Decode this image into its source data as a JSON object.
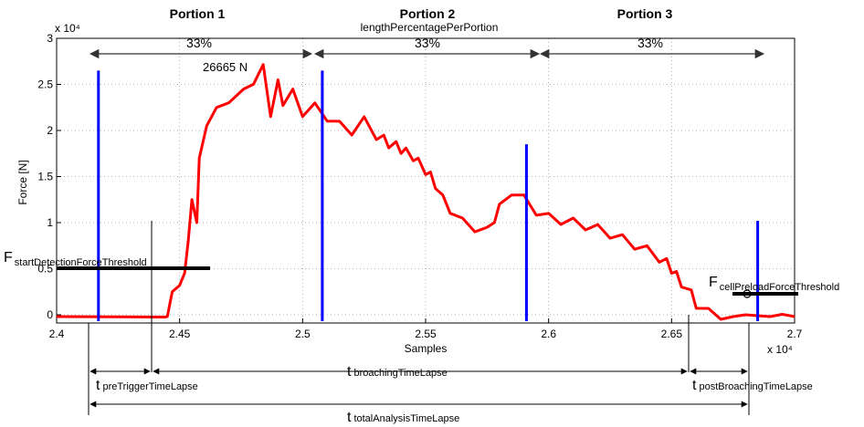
{
  "chart_data": {
    "type": "line",
    "portions": [
      {
        "title": "Portion 1",
        "pct": "33%"
      },
      {
        "title": "Portion 2",
        "pct": "33%"
      },
      {
        "title": "Portion 3",
        "pct": "33%"
      }
    ],
    "portion_caption": "lengthPercentagePerPortion",
    "peak_label": "26665 N",
    "ylabel": "Force [N]",
    "xlabel": "Samples",
    "y_exponent": "x 10⁴",
    "x_exponent": "x 10⁴",
    "xlim": [
      24000,
      27000
    ],
    "ylim": [
      -500,
      30000
    ],
    "xticks": [
      {
        "v": 24000,
        "label": "2.4"
      },
      {
        "v": 24500,
        "label": "2.45"
      },
      {
        "v": 25000,
        "label": "2.5"
      },
      {
        "v": 25500,
        "label": "2.55"
      },
      {
        "v": 26000,
        "label": "2.6"
      },
      {
        "v": 26500,
        "label": "2.65"
      },
      {
        "v": 27000,
        "label": "2.7"
      }
    ],
    "yticks": [
      {
        "v": 0,
        "label": "0"
      },
      {
        "v": 5000,
        "label": "0.5"
      },
      {
        "v": 10000,
        "label": "1"
      },
      {
        "v": 15000,
        "label": "1.5"
      },
      {
        "v": 20000,
        "label": "2"
      },
      {
        "v": 25000,
        "label": "2.5"
      },
      {
        "v": 30000,
        "label": "3"
      }
    ],
    "grid": true,
    "series": [
      {
        "color": "#ff0000",
        "x": [
          24000,
          24440,
          24450,
          24470,
          24500,
          24520,
          24535,
          24550,
          24570,
          24580,
          24610,
          24650,
          24700,
          24760,
          24800,
          24840,
          24870,
          24900,
          24920,
          24960,
          25000,
          25050,
          25100,
          25150,
          25200,
          25250,
          25300,
          25330,
          25350,
          25380,
          25400,
          25420,
          25450,
          25470,
          25500,
          25520,
          25540,
          25570,
          25600,
          25650,
          25700,
          25750,
          25780,
          25800,
          25850,
          25900,
          25950,
          26000,
          26050,
          26100,
          26150,
          26200,
          26250,
          26300,
          26350,
          26400,
          26450,
          26480,
          26500,
          26520,
          26540,
          26580,
          26600,
          26650,
          26700,
          26750,
          26800,
          26850,
          26900,
          26950,
          27000
        ],
        "y": [
          -200,
          -250,
          -200,
          2500,
          3200,
          4500,
          8000,
          12500,
          10000,
          17000,
          21000,
          22000,
          23500,
          24000,
          25500,
          26665,
          22000,
          25000,
          23200,
          24000,
          22000,
          22500,
          21500,
          20500,
          20000,
          21000,
          19500,
          19000,
          18600,
          18300,
          18000,
          17600,
          17200,
          16500,
          15700,
          15000,
          14200,
          12500,
          11500,
          10000,
          9500,
          9000,
          10500,
          11500,
          13500,
          12500,
          11300,
          10500,
          10300,
          10000,
          9700,
          9300,
          8800,
          8200,
          7600,
          7000,
          6200,
          5600,
          5000,
          4200,
          3500,
          2200,
          1200,
          200,
          0,
          -200,
          0,
          -100,
          -200,
          50,
          -200
        ]
      }
    ],
    "vlines": [
      {
        "x": 24170,
        "y_top": 26500,
        "color": "#0000ff"
      },
      {
        "x": 25080,
        "y_top": 26500,
        "color": "#0000ff"
      },
      {
        "x": 25910,
        "y_top": 18500,
        "color": "#0000ff"
      },
      {
        "x": 26850,
        "y_top": 10200,
        "color": "#0000ff"
      }
    ],
    "thresholds": [
      {
        "label_main": "F",
        "label_sub": "startDetectionForceThreshold",
        "y": 5000
      },
      {
        "label_main": "F",
        "label_sub": "cellPreloadForceThreshold",
        "y": 2200
      }
    ],
    "timelapses": [
      {
        "label_main": "t",
        "label_sub": "preTriggerTimeLapse"
      },
      {
        "label_main": "t",
        "label_sub": "broachingTimeLapse"
      },
      {
        "label_main": "t",
        "label_sub": "postBroachingTimeLapse"
      },
      {
        "label_main": "t",
        "label_sub": "totalAnalysisTimeLapse"
      }
    ]
  }
}
